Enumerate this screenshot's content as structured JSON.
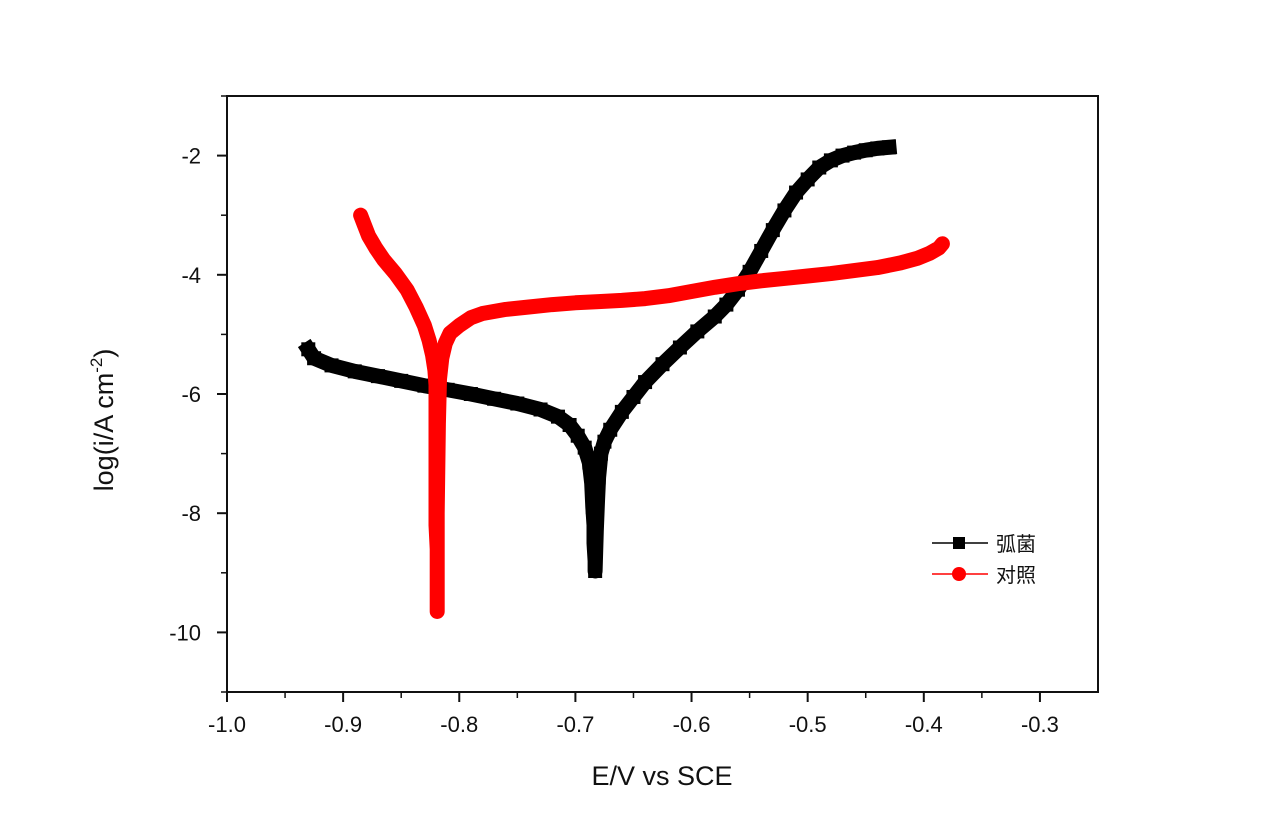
{
  "chart_data": {
    "type": "line",
    "xlabel": "E/V vs SCE",
    "ylabel_main": "log(i/A cm",
    "ylabel_sup": "-2",
    "ylabel_close": ")",
    "xlim": [
      -1.0,
      -0.25
    ],
    "ylim": [
      -11,
      -1
    ],
    "xticks": [
      -1.0,
      -0.9,
      -0.8,
      -0.7,
      -0.6,
      -0.5,
      -0.4,
      -0.3
    ],
    "xtick_labels": [
      "-1.0",
      "-0.9",
      "-0.8",
      "-0.7",
      "-0.6",
      "-0.5",
      "-0.4",
      "-0.3"
    ],
    "yticks": [
      -2,
      -4,
      -6,
      -8,
      -10
    ],
    "ytick_labels": [
      "-2",
      "-4",
      "-6",
      "-8",
      "-10"
    ],
    "grid": false,
    "legend_position": "lower-right",
    "series": [
      {
        "name": "弧菌",
        "color": "#000000",
        "marker": "square",
        "x": [
          -0.93,
          -0.925,
          -0.91,
          -0.89,
          -0.87,
          -0.85,
          -0.83,
          -0.81,
          -0.79,
          -0.77,
          -0.75,
          -0.73,
          -0.715,
          -0.705,
          -0.698,
          -0.692,
          -0.688,
          -0.686,
          -0.685,
          -0.684,
          -0.684,
          -0.683,
          -0.683,
          -0.682,
          -0.681,
          -0.68,
          -0.678,
          -0.675,
          -0.67,
          -0.66,
          -0.65,
          -0.64,
          -0.625,
          -0.61,
          -0.595,
          -0.58,
          -0.57,
          -0.56,
          -0.55,
          -0.54,
          -0.53,
          -0.52,
          -0.51,
          -0.5,
          -0.49,
          -0.48,
          -0.47,
          -0.46,
          -0.45,
          -0.44,
          -0.43
        ],
        "y": [
          -5.25,
          -5.4,
          -5.52,
          -5.62,
          -5.7,
          -5.78,
          -5.86,
          -5.93,
          -6.0,
          -6.08,
          -6.16,
          -6.26,
          -6.38,
          -6.52,
          -6.7,
          -6.9,
          -7.15,
          -7.5,
          -7.9,
          -8.2,
          -8.5,
          -8.8,
          -8.97,
          -8.3,
          -7.8,
          -7.4,
          -7.0,
          -6.8,
          -6.6,
          -6.3,
          -6.05,
          -5.8,
          -5.5,
          -5.22,
          -4.95,
          -4.7,
          -4.5,
          -4.25,
          -3.95,
          -3.6,
          -3.25,
          -2.92,
          -2.62,
          -2.4,
          -2.2,
          -2.08,
          -2.0,
          -1.95,
          -1.91,
          -1.88,
          -1.86
        ]
      },
      {
        "name": "对照",
        "color": "#ff0000",
        "marker": "circle",
        "x": [
          -0.885,
          -0.882,
          -0.878,
          -0.872,
          -0.865,
          -0.855,
          -0.845,
          -0.837,
          -0.83,
          -0.826,
          -0.823,
          -0.821,
          -0.82,
          -0.82,
          -0.82,
          -0.82,
          -0.82,
          -0.82,
          -0.82,
          -0.819,
          -0.819,
          -0.819,
          -0.818,
          -0.817,
          -0.815,
          -0.812,
          -0.808,
          -0.8,
          -0.79,
          -0.78,
          -0.76,
          -0.74,
          -0.72,
          -0.7,
          -0.68,
          -0.66,
          -0.64,
          -0.62,
          -0.6,
          -0.58,
          -0.56,
          -0.54,
          -0.52,
          -0.5,
          -0.48,
          -0.46,
          -0.44,
          -0.42,
          -0.405,
          -0.395,
          -0.387,
          -0.384
        ],
        "y": [
          -3.0,
          -3.15,
          -3.35,
          -3.55,
          -3.75,
          -3.98,
          -4.25,
          -4.55,
          -4.85,
          -5.1,
          -5.35,
          -5.6,
          -5.85,
          -6.1,
          -6.4,
          -6.75,
          -7.2,
          -7.8,
          -8.2,
          -8.6,
          -9.65,
          -8.0,
          -6.5,
          -5.75,
          -5.4,
          -5.15,
          -4.98,
          -4.85,
          -4.72,
          -4.65,
          -4.58,
          -4.54,
          -4.5,
          -4.47,
          -4.45,
          -4.43,
          -4.4,
          -4.35,
          -4.28,
          -4.21,
          -4.15,
          -4.1,
          -4.06,
          -4.02,
          -3.98,
          -3.93,
          -3.88,
          -3.8,
          -3.72,
          -3.64,
          -3.55,
          -3.48
        ]
      }
    ]
  }
}
